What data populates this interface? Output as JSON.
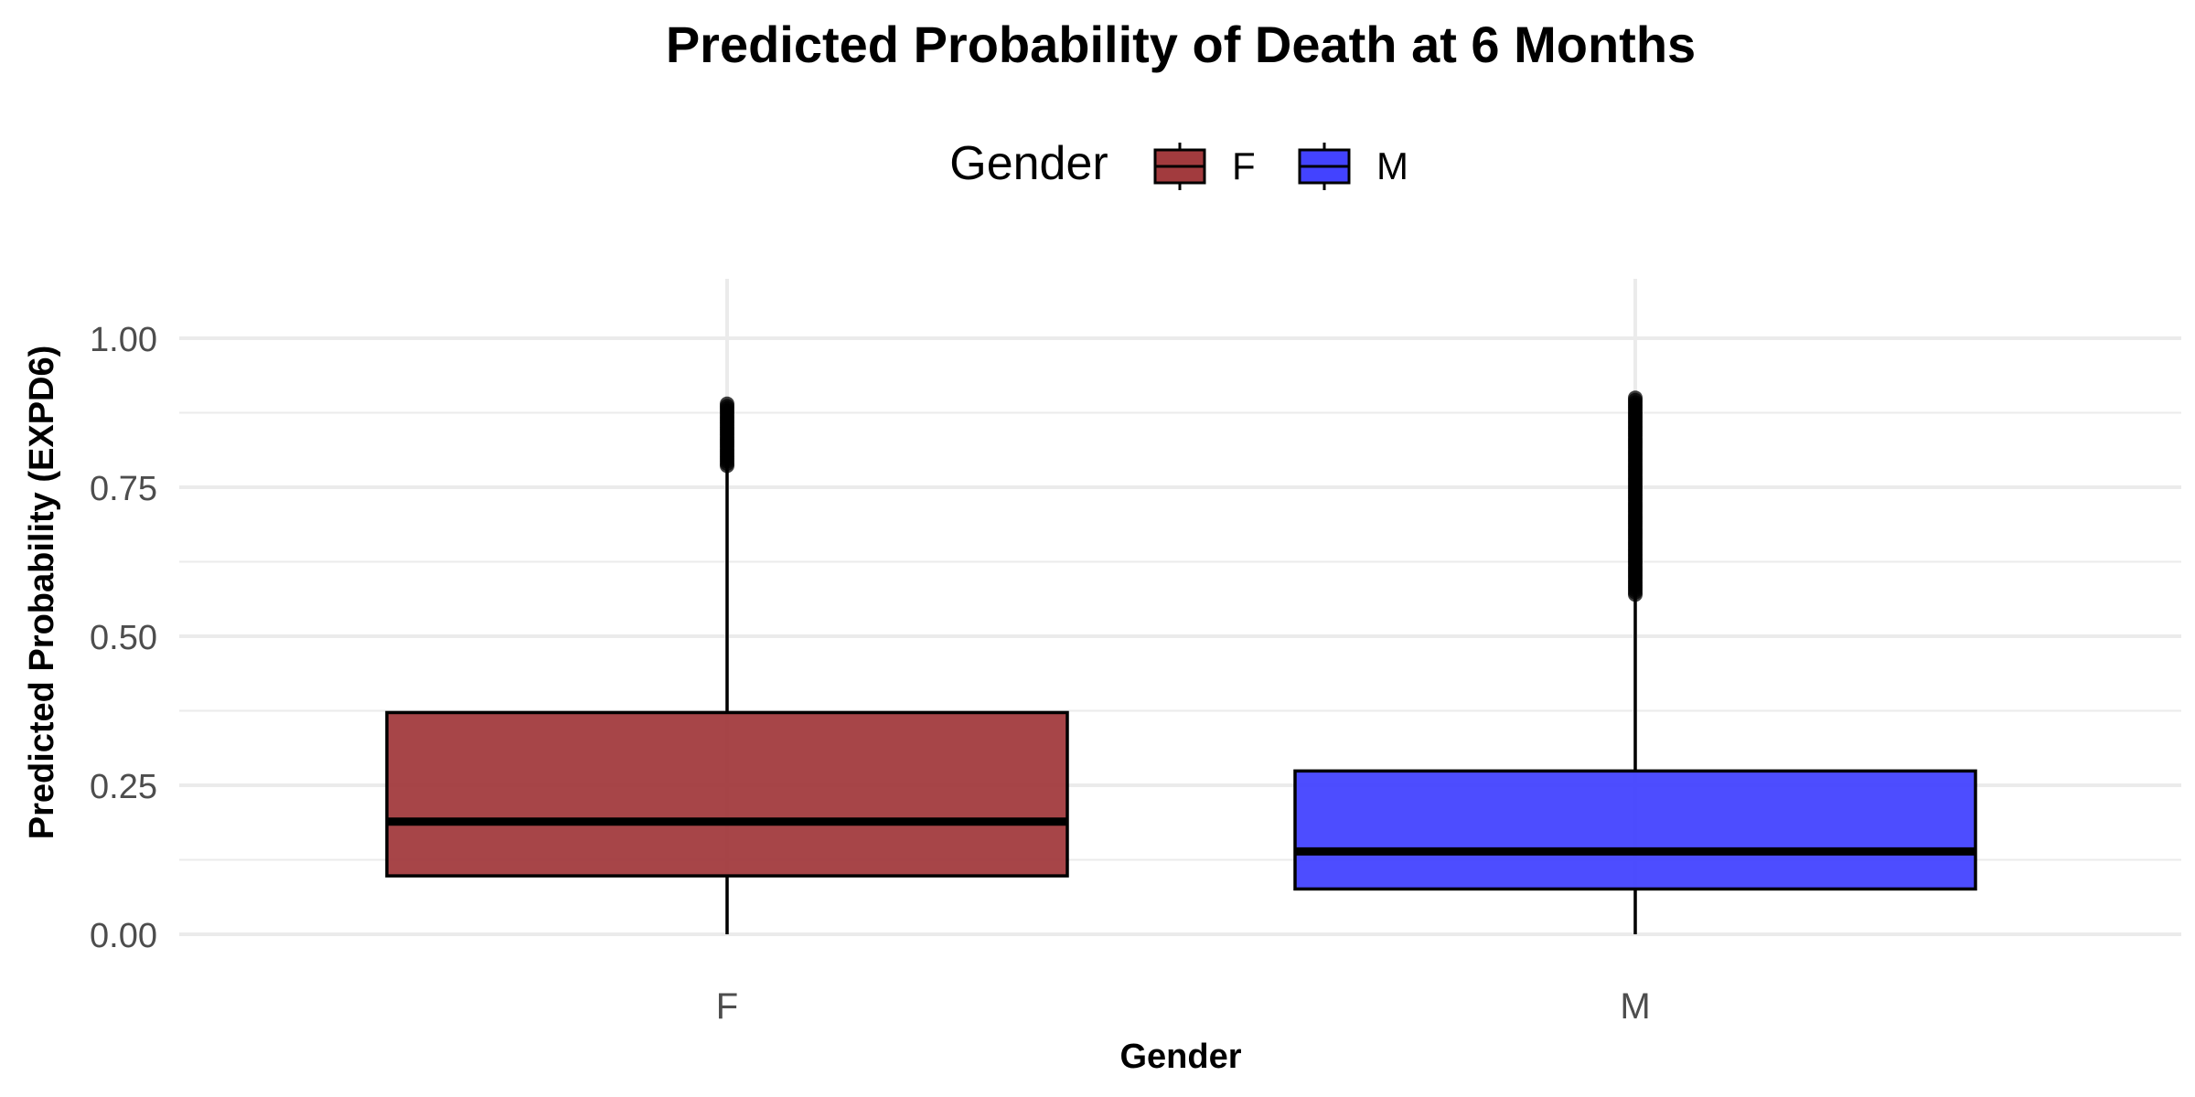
{
  "chart_data": {
    "type": "boxplot",
    "title": "Predicted Probability of Death at 6 Months",
    "xlabel": "Gender",
    "ylabel": "Predicted Probability (EXPD6)",
    "ylim": [
      0,
      1.1
    ],
    "yticks": [
      "0.00",
      "0.25",
      "0.50",
      "0.75",
      "1.00"
    ],
    "grid": true,
    "legend": {
      "title": "Gender",
      "position": "top",
      "entries": [
        "F",
        "M"
      ]
    },
    "categories": [
      "F",
      "M"
    ],
    "series": [
      {
        "name": "F",
        "color": "#a23b3e",
        "min": 0.0,
        "q1": 0.098,
        "median": 0.189,
        "q3": 0.372,
        "whisker_high": 0.786,
        "outlier_range": [
          0.786,
          0.89
        ]
      },
      {
        "name": "M",
        "color": "#4343ff",
        "min": 0.0,
        "q1": 0.076,
        "median": 0.139,
        "q3": 0.274,
        "whisker_high": 0.57,
        "outlier_range": [
          0.57,
          0.9
        ]
      }
    ]
  }
}
